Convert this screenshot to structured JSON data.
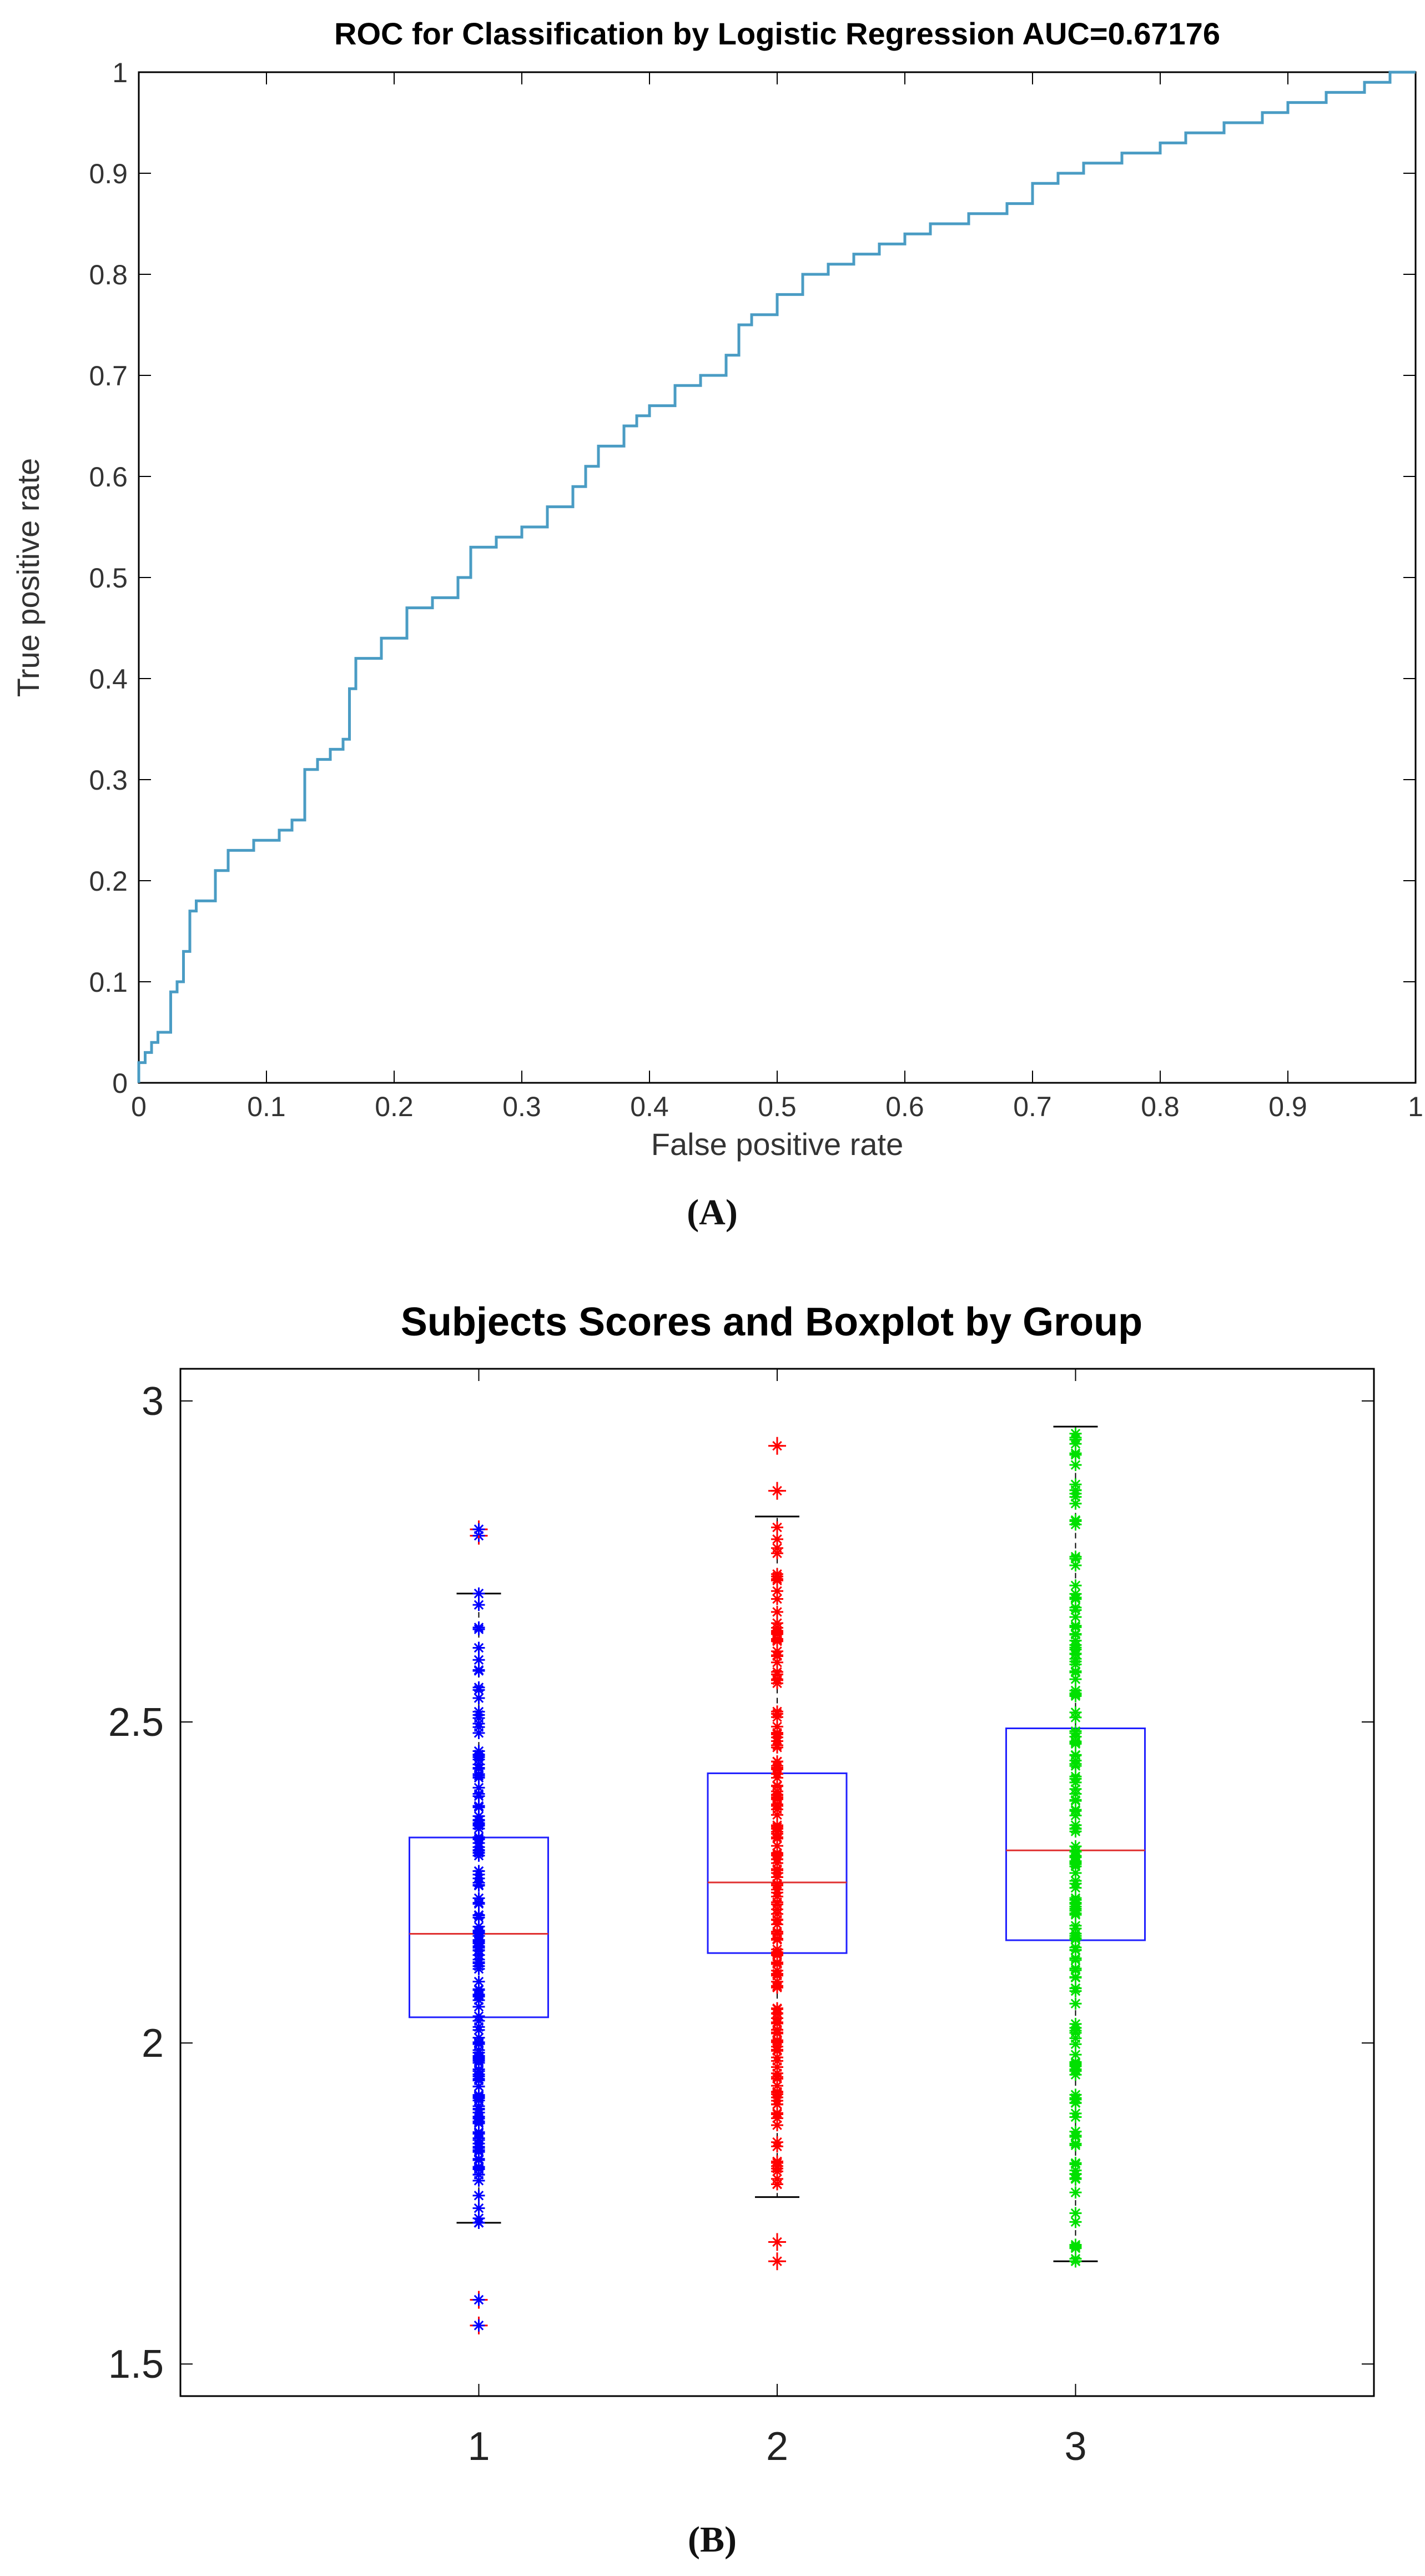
{
  "chart_data": [
    {
      "panel": "A",
      "type": "line",
      "title": "ROC for Classification by Logistic Regression AUC=0.67176",
      "xlabel": "False positive rate",
      "ylabel": "True positive rate",
      "xlim": [
        0,
        1
      ],
      "ylim": [
        0,
        1
      ],
      "xticks": [
        "0",
        "0.1",
        "0.2",
        "0.3",
        "0.4",
        "0.5",
        "0.6",
        "0.7",
        "0.8",
        "0.9",
        "1"
      ],
      "yticks": [
        "0",
        "0.1",
        "0.2",
        "0.3",
        "0.4",
        "0.5",
        "0.6",
        "0.7",
        "0.8",
        "0.9",
        "1"
      ],
      "grid": false,
      "color": "#4a9cc4",
      "series": [
        {
          "name": "ROC",
          "x": [
            0,
            0,
            0.005,
            0.005,
            0.01,
            0.01,
            0.015,
            0.015,
            0.025,
            0.025,
            0.03,
            0.03,
            0.035,
            0.035,
            0.04,
            0.04,
            0.045,
            0.045,
            0.06,
            0.06,
            0.07,
            0.07,
            0.09,
            0.09,
            0.11,
            0.11,
            0.12,
            0.12,
            0.13,
            0.13,
            0.14,
            0.14,
            0.15,
            0.15,
            0.16,
            0.16,
            0.165,
            0.165,
            0.17,
            0.17,
            0.19,
            0.19,
            0.21,
            0.21,
            0.23,
            0.23,
            0.25,
            0.25,
            0.26,
            0.26,
            0.28,
            0.28,
            0.3,
            0.3,
            0.32,
            0.32,
            0.34,
            0.34,
            0.35,
            0.35,
            0.36,
            0.36,
            0.38,
            0.38,
            0.39,
            0.39,
            0.4,
            0.4,
            0.42,
            0.42,
            0.44,
            0.44,
            0.46,
            0.46,
            0.47,
            0.47,
            0.48,
            0.48,
            0.5,
            0.5,
            0.52,
            0.52,
            0.54,
            0.54,
            0.56,
            0.56,
            0.58,
            0.58,
            0.6,
            0.6,
            0.62,
            0.62,
            0.65,
            0.65,
            0.68,
            0.68,
            0.7,
            0.7,
            0.72,
            0.72,
            0.74,
            0.74,
            0.77,
            0.77,
            0.8,
            0.8,
            0.82,
            0.82,
            0.85,
            0.85,
            0.88,
            0.88,
            0.9,
            0.9,
            0.93,
            0.93,
            0.96,
            0.96,
            0.98,
            0.98,
            1
          ],
          "y": [
            0,
            0.02,
            0.02,
            0.03,
            0.03,
            0.04,
            0.04,
            0.05,
            0.05,
            0.09,
            0.09,
            0.1,
            0.1,
            0.13,
            0.13,
            0.17,
            0.17,
            0.18,
            0.18,
            0.21,
            0.21,
            0.23,
            0.23,
            0.24,
            0.24,
            0.25,
            0.25,
            0.26,
            0.26,
            0.31,
            0.31,
            0.32,
            0.32,
            0.33,
            0.33,
            0.34,
            0.34,
            0.39,
            0.39,
            0.42,
            0.42,
            0.44,
            0.44,
            0.47,
            0.47,
            0.48,
            0.48,
            0.5,
            0.5,
            0.53,
            0.53,
            0.54,
            0.54,
            0.55,
            0.55,
            0.57,
            0.57,
            0.59,
            0.59,
            0.61,
            0.61,
            0.63,
            0.63,
            0.65,
            0.65,
            0.66,
            0.66,
            0.67,
            0.67,
            0.69,
            0.69,
            0.7,
            0.7,
            0.72,
            0.72,
            0.75,
            0.75,
            0.76,
            0.76,
            0.78,
            0.78,
            0.8,
            0.8,
            0.81,
            0.81,
            0.82,
            0.82,
            0.83,
            0.83,
            0.84,
            0.84,
            0.85,
            0.85,
            0.86,
            0.86,
            0.87,
            0.87,
            0.89,
            0.89,
            0.9,
            0.9,
            0.91,
            0.91,
            0.92,
            0.92,
            0.93,
            0.93,
            0.94,
            0.94,
            0.95,
            0.95,
            0.96,
            0.96,
            0.97,
            0.97,
            0.98,
            0.98,
            0.99,
            0.99,
            1,
            1
          ]
        }
      ],
      "caption": "(A)"
    },
    {
      "panel": "B",
      "type": "box",
      "title": "Subjects Scores and Boxplot by Group",
      "xlabel": "",
      "ylabel": "",
      "categories": [
        "1",
        "2",
        "3"
      ],
      "xlim": [
        0,
        4
      ],
      "ylim": [
        1.45,
        3.05
      ],
      "yticks": [
        "1.5",
        "2",
        "2.5",
        "3"
      ],
      "box_color": "#2020ff",
      "median_color": "#e03030",
      "whisker_color": "#000000",
      "groups": [
        {
          "name": "1",
          "color": "#0000ff",
          "q1": 2.04,
          "median": 2.17,
          "q3": 2.32,
          "whisker_low": 1.72,
          "whisker_high": 2.7,
          "outliers": [
            2.79,
            2.8,
            1.6,
            1.56
          ],
          "point_range": [
            1.72,
            2.7
          ]
        },
        {
          "name": "2",
          "color": "#ff0000",
          "q1": 2.14,
          "median": 2.25,
          "q3": 2.42,
          "whisker_low": 1.76,
          "whisker_high": 2.82,
          "outliers": [
            2.86,
            2.93,
            1.69,
            1.66
          ],
          "point_range": [
            1.78,
            2.82
          ]
        },
        {
          "name": "3",
          "color": "#00e000",
          "q1": 2.16,
          "median": 2.3,
          "q3": 2.49,
          "whisker_low": 1.66,
          "whisker_high": 2.96,
          "outliers": [],
          "point_range": [
            1.66,
            2.96
          ]
        }
      ],
      "caption": "(B)"
    }
  ]
}
